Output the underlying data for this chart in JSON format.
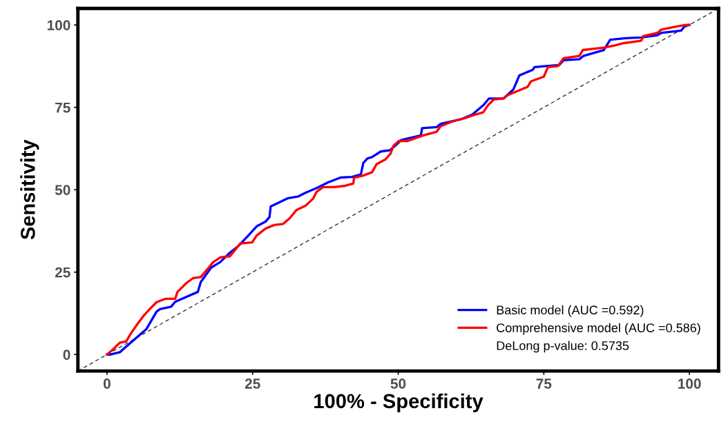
{
  "chart_data": {
    "type": "line",
    "xlabel": "100% - Specificity",
    "ylabel": "Sensitivity",
    "xlim": [
      -5,
      105
    ],
    "ylim": [
      -5,
      105
    ],
    "xticks": [
      0,
      25,
      50,
      75,
      100
    ],
    "yticks": [
      0,
      25,
      50,
      75,
      100
    ],
    "grid": false,
    "legend": "bottom right",
    "marker": "none",
    "line_style": "solid",
    "annotations": [
      "DeLong p-value: 0.5735"
    ],
    "series": [
      {
        "name": "Basic model (AUC =0.592)",
        "color": "#0000ff",
        "x": [
          0,
          0.6,
          2.2,
          6.8,
          8.5,
          9.1,
          11,
          11.7,
          15.6,
          16.1,
          17.9,
          19.4,
          21.1,
          22.6,
          24.1,
          25.7,
          27.2,
          27.9,
          28.1,
          31,
          32.9,
          34.1,
          36,
          37.9,
          40.1,
          42.1,
          43.6,
          44,
          44.7,
          45.5,
          47,
          48.6,
          49.7,
          50.5,
          53.9,
          54.1,
          56.6,
          57.3,
          60.8,
          62.7,
          64.6,
          65.6,
          68.1,
          69.8,
          70.8,
          73.1,
          73.4,
          75.3,
          77.6,
          78.4,
          81.1,
          81.8,
          85.3,
          86.4,
          89.1,
          91.7,
          94.5,
          95.2,
          98.6,
          99.2,
          100
        ],
        "values": [
          0,
          0,
          0.7,
          7.8,
          13,
          13.8,
          14.5,
          16,
          19,
          22,
          26.4,
          28,
          30.9,
          33,
          35.8,
          38.9,
          40.3,
          41.7,
          44.9,
          47.4,
          48,
          49.1,
          50.5,
          52.2,
          53.7,
          53.9,
          54.7,
          58.1,
          59.5,
          59.9,
          61.6,
          62,
          63.7,
          65.1,
          66.5,
          68.7,
          69,
          70,
          71.4,
          72.8,
          75.6,
          77.7,
          77.7,
          80.5,
          84.7,
          86.4,
          87.2,
          87.5,
          87.8,
          89.3,
          89.6,
          90.6,
          92.4,
          95.5,
          96,
          96.2,
          96.9,
          97.6,
          98.3,
          99.7,
          100
        ]
      },
      {
        "name": "Comprehensive model (AUC =0.586)",
        "color": "#ff0000",
        "x": [
          0,
          1,
          2.2,
          3.3,
          4.1,
          5.2,
          6.4,
          7.5,
          8.5,
          10,
          11.7,
          12.1,
          13.7,
          14.8,
          16.1,
          17.3,
          18.2,
          19.5,
          21.1,
          22.9,
          24.9,
          25.7,
          27.2,
          28.7,
          30.2,
          31.4,
          32.5,
          34.1,
          35.4,
          36,
          37.1,
          39,
          40.9,
          42.3,
          42.4,
          44,
          45.5,
          46.3,
          47.8,
          48.7,
          49.2,
          50.1,
          51.6,
          54.3,
          56.6,
          57.3,
          59.3,
          61.6,
          62.7,
          64.6,
          65.4,
          66.4,
          68.1,
          68.8,
          72.2,
          72.8,
          75,
          75.7,
          77.4,
          78.4,
          81.1,
          81.7,
          85.3,
          87.2,
          88.8,
          91.7,
          92.1,
          94.5,
          95.2,
          98.3,
          99.4,
          100
        ],
        "values": [
          0,
          1.5,
          3.6,
          4,
          6.4,
          9.2,
          12,
          14.1,
          15.9,
          16.9,
          16.9,
          19,
          21.8,
          23.2,
          23.5,
          26,
          28,
          29.5,
          29.8,
          33.7,
          34,
          36.1,
          38.2,
          39.3,
          39.6,
          41.4,
          43.8,
          45.2,
          47.3,
          49.4,
          50.8,
          50.8,
          51.2,
          51.9,
          53.6,
          54.3,
          55.3,
          57.8,
          59.2,
          61,
          63.4,
          64.8,
          64.8,
          66.5,
          67.6,
          69.3,
          70.7,
          71.8,
          72.5,
          73.5,
          75.6,
          77.4,
          77.7,
          78.7,
          81.2,
          82.9,
          84.3,
          87.2,
          87.5,
          89.9,
          90.6,
          92.4,
          93.1,
          93.8,
          94.5,
          95.2,
          96.6,
          97.6,
          98.6,
          99.7,
          100,
          100
        ]
      },
      {
        "type": "line",
        "color": "#333333",
        "line_style": "dashed",
        "x": [
          -5,
          105
        ],
        "values": [
          -5,
          105
        ]
      }
    ]
  }
}
